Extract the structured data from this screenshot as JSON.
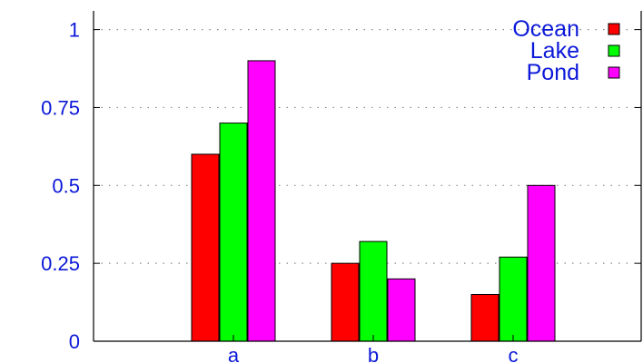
{
  "chart_data": {
    "type": "bar",
    "categories": [
      "a",
      "b",
      "c"
    ],
    "series": [
      {
        "name": "Ocean",
        "values": [
          0.6,
          0.25,
          0.15
        ],
        "color": "#ff0000"
      },
      {
        "name": "Lake",
        "values": [
          0.7,
          0.32,
          0.27
        ],
        "color": "#00ff00"
      },
      {
        "name": "Pond",
        "values": [
          0.9,
          0.2,
          0.5
        ],
        "color": "#ff00ff"
      }
    ],
    "yticks": [
      {
        "value": 0,
        "label": "0"
      },
      {
        "value": 0.25,
        "label": "0.25"
      },
      {
        "value": 0.5,
        "label": "0.5"
      },
      {
        "value": 0.75,
        "label": "0.75"
      },
      {
        "value": 1,
        "label": "1"
      }
    ],
    "ylim": [
      0,
      1.06
    ],
    "grid": "horizontal dotted",
    "legend_position": "top-right",
    "text_color": "#0b18d8"
  }
}
